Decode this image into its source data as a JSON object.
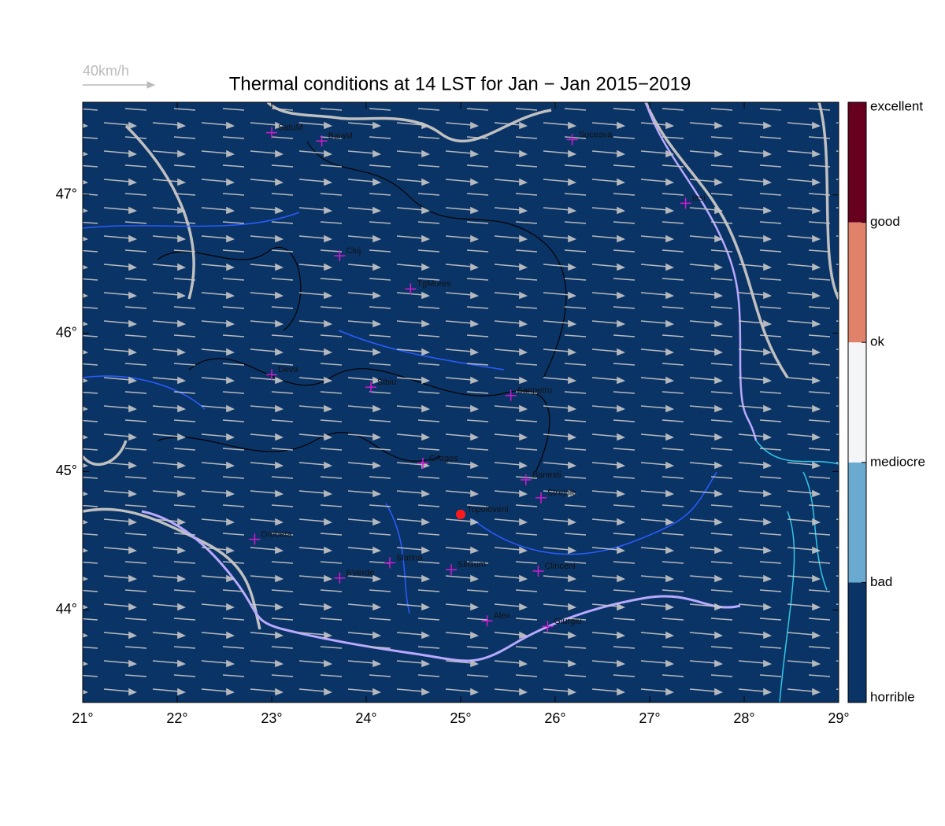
{
  "title": "Thermal conditions at 14 LST for Jan − Jan  2015−2019",
  "wind_legend": "40km/h",
  "map": {
    "background": "#0b3466",
    "xlim": [
      21,
      29
    ],
    "ylim": [
      43.33,
      47.67
    ],
    "xticks": [
      {
        "value": 21,
        "label": "21°"
      },
      {
        "value": 22,
        "label": "22°"
      },
      {
        "value": 23,
        "label": "23°"
      },
      {
        "value": 24,
        "label": "24°"
      },
      {
        "value": 25,
        "label": "25°"
      },
      {
        "value": 26,
        "label": "26°"
      },
      {
        "value": 27,
        "label": "27°"
      },
      {
        "value": 28,
        "label": "28°"
      },
      {
        "value": 29,
        "label": "29°"
      }
    ],
    "yticks": [
      {
        "value": 44,
        "label": "44°"
      },
      {
        "value": 45,
        "label": "45°"
      },
      {
        "value": 46,
        "label": "46°"
      },
      {
        "value": 47,
        "label": "47°"
      }
    ]
  },
  "cities": [
    {
      "name": "SatuM",
      "lon": 23.0,
      "lat": 47.45
    },
    {
      "name": "BaiaM",
      "lon": 23.53,
      "lat": 47.39
    },
    {
      "name": "Suceava",
      "lon": 26.18,
      "lat": 47.4
    },
    {
      "name": "Iasi",
      "lon": 27.38,
      "lat": 46.94
    },
    {
      "name": "Cluj",
      "lon": 23.72,
      "lat": 46.56
    },
    {
      "name": "TgMures",
      "lon": 24.47,
      "lat": 46.32
    },
    {
      "name": "Deva",
      "lon": 23.0,
      "lat": 45.7
    },
    {
      "name": "Sibiu",
      "lon": 24.05,
      "lat": 45.61
    },
    {
      "name": "Sanpetru",
      "lon": 25.53,
      "lat": 45.55
    },
    {
      "name": "CArges",
      "lon": 24.6,
      "lat": 45.06
    },
    {
      "name": "Banesti",
      "lon": 25.69,
      "lat": 44.94
    },
    {
      "name": "Strejnic",
      "lon": 25.85,
      "lat": 44.81
    },
    {
      "name": "Topoloveni",
      "lon": 25.0,
      "lat": 44.69,
      "highlight": true
    },
    {
      "name": "Drobeta",
      "lon": 22.82,
      "lat": 44.51
    },
    {
      "name": "Slatina",
      "lon": 24.25,
      "lat": 44.34
    },
    {
      "name": "SilGum",
      "lon": 24.9,
      "lat": 44.29
    },
    {
      "name": "BVerde",
      "lon": 23.72,
      "lat": 44.23
    },
    {
      "name": "Clinceni",
      "lon": 25.82,
      "lat": 44.28
    },
    {
      "name": "Alex",
      "lon": 25.28,
      "lat": 43.92
    },
    {
      "name": "Giurgiu",
      "lon": 25.92,
      "lat": 43.88
    }
  ],
  "colorbar": {
    "labels": [
      "horrible",
      "bad",
      "mediocre",
      "ok",
      "good",
      "excellent"
    ],
    "colors": [
      "#0a3366",
      "#6aa9d0",
      "#f4f5f7",
      "#e0826a",
      "#67001f"
    ]
  }
}
